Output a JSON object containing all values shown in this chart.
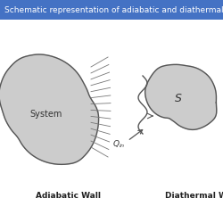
{
  "title": "Schematic representation of adiabatic and diathermal wall",
  "title_bg": "#4472C4",
  "title_color": "white",
  "title_fontsize": 6.5,
  "bg_color": "#FFFFFF",
  "content_bg": "#FFFFFF",
  "blob_fill": "#CCCCCC",
  "blob_edge": "#555555",
  "label_left": "Adiabatic Wall",
  "label_right": "Diathermal Wall",
  "system_label_left": "System",
  "system_label_right": "S",
  "label_fontsize": 6.5,
  "system_fontsize": 7,
  "hatch_color": "#777777",
  "arrow_color": "#555555"
}
